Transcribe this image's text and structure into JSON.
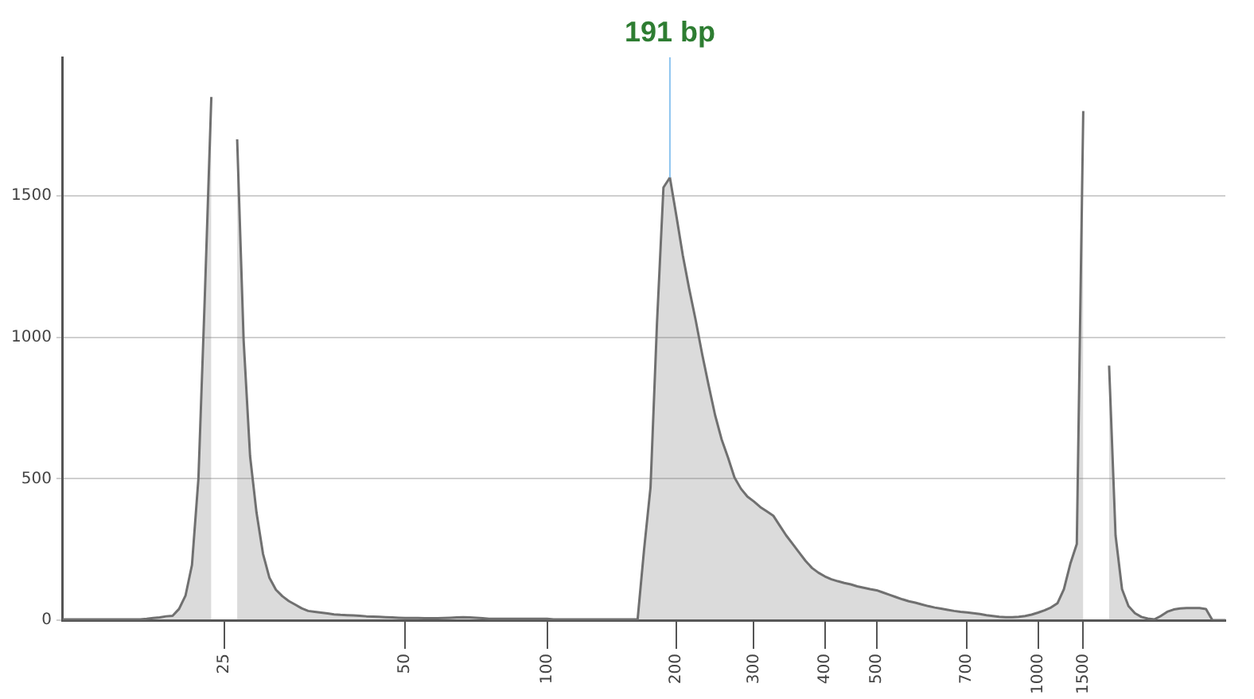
{
  "chart_data": {
    "type": "area",
    "annotations": [
      {
        "text": "191 bp",
        "y": 1565
      }
    ],
    "categories": [
      null,
      null,
      null,
      null,
      null,
      null,
      null,
      null,
      null,
      null,
      null,
      null,
      null,
      null,
      null,
      null,
      null,
      null,
      null,
      null,
      null,
      null,
      null,
      null,
      null,
      "25",
      null,
      null,
      null,
      null,
      null,
      null,
      null,
      null,
      null,
      null,
      null,
      null,
      null,
      null,
      null,
      null,
      null,
      null,
      null,
      null,
      null,
      null,
      null,
      null,
      null,
      null,
      null,
      "50",
      null,
      null,
      null,
      null,
      null,
      null,
      null,
      null,
      null,
      null,
      null,
      null,
      null,
      null,
      null,
      null,
      null,
      null,
      null,
      null,
      null,
      "100",
      null,
      null,
      null,
      null,
      null,
      null,
      null,
      null,
      null,
      null,
      null,
      null,
      null,
      null,
      null,
      null,
      null,
      null,
      null,
      "200",
      null,
      null,
      null,
      null,
      null,
      null,
      null,
      null,
      null,
      null,
      null,
      "300",
      null,
      null,
      null,
      null,
      null,
      null,
      null,
      null,
      null,
      null,
      "400",
      null,
      null,
      null,
      null,
      null,
      null,
      null,
      "500",
      null,
      null,
      null,
      null,
      null,
      null,
      null,
      null,
      null,
      null,
      null,
      null,
      null,
      "700",
      null,
      null,
      null,
      null,
      null,
      null,
      null,
      null,
      null,
      null,
      "1000",
      null,
      null,
      null,
      null,
      null,
      null,
      "1500",
      null,
      null,
      null,
      null,
      null,
      null,
      null,
      null,
      null,
      null,
      null,
      null,
      null,
      null,
      null,
      null,
      null,
      null,
      null,
      null,
      null,
      null
    ],
    "series": [
      {
        "color": "#707070",
        "values": [
          3,
          3,
          3,
          3,
          3,
          3,
          3,
          3,
          3,
          3,
          3,
          3,
          3,
          5,
          8,
          10,
          14,
          16,
          40,
          87,
          195,
          500,
          1150,
          1850,
          null,
          null,
          null,
          1700,
          990,
          580,
          380,
          235,
          150,
          108,
          85,
          68,
          55,
          42,
          33,
          30,
          27,
          24,
          21,
          19,
          18,
          17,
          16,
          14,
          13,
          12,
          11,
          10,
          9,
          8,
          8,
          8,
          7,
          7,
          7,
          8,
          9,
          10,
          11,
          10,
          9,
          7,
          5,
          5,
          5,
          5,
          5,
          5,
          5,
          5,
          5,
          5,
          3,
          3,
          3,
          3,
          3,
          3,
          3,
          3,
          3,
          3,
          3,
          3,
          3,
          3,
          250,
          470,
          1050,
          1530,
          1565,
          1430,
          1290,
          1170,
          1060,
          940,
          830,
          725,
          640,
          575,
          505,
          465,
          437,
          420,
          400,
          385,
          370,
          335,
          300,
          270,
          240,
          210,
          185,
          168,
          155,
          145,
          138,
          132,
          127,
          120,
          115,
          110,
          106,
          98,
          90,
          82,
          74,
          67,
          62,
          56,
          50,
          45,
          41,
          37,
          33,
          30,
          28,
          25,
          22,
          18,
          15,
          12,
          11,
          11,
          12,
          15,
          20,
          27,
          35,
          45,
          60,
          110,
          200,
          270,
          1800,
          null,
          null,
          null,
          900,
          300,
          110,
          50,
          25,
          12,
          6,
          3,
          15,
          30,
          38,
          42,
          43,
          43,
          43,
          40,
          0,
          0,
          0
        ]
      }
    ],
    "ylim": [
      0,
      1990
    ],
    "yticks": [
      0,
      500,
      1000,
      1500
    ],
    "grid": "y",
    "legend": false
  }
}
